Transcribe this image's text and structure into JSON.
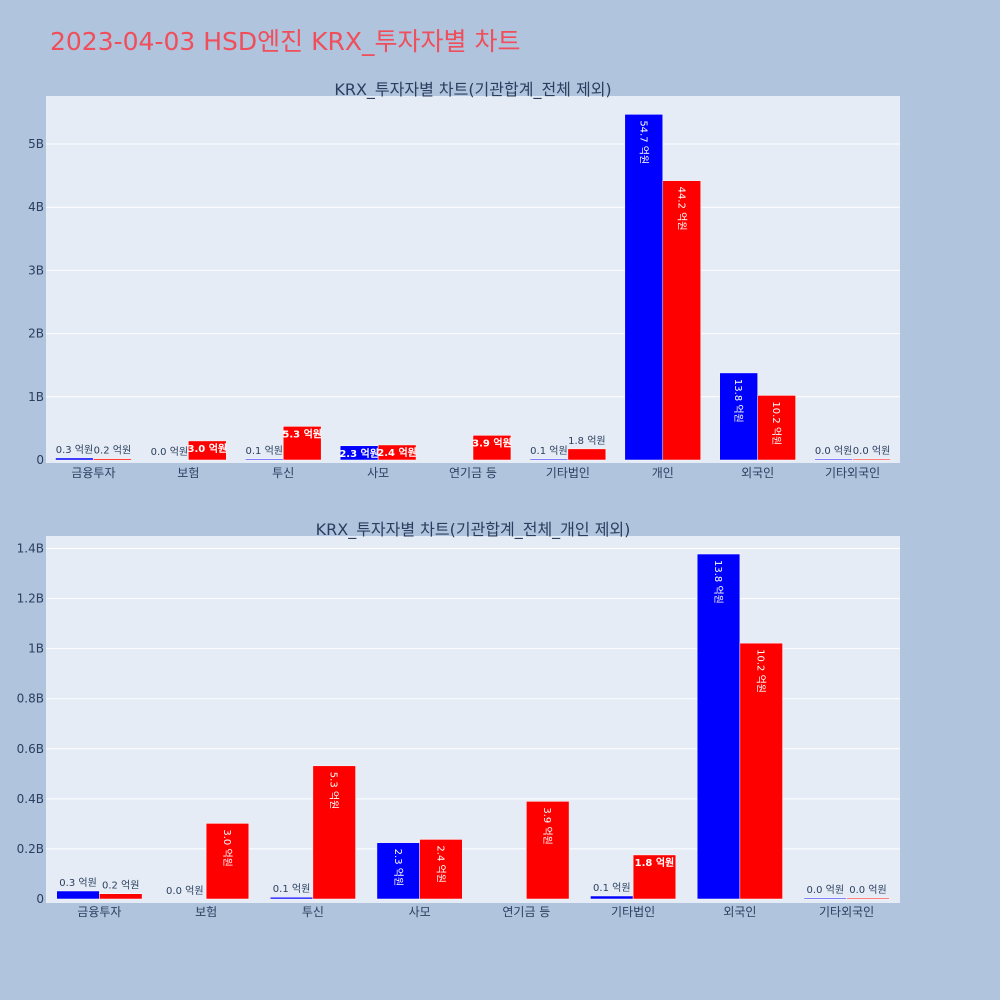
{
  "title": "2023-04-03 HSD엔진 KRX_투자자별 차트",
  "colors": {
    "series_a": "#0000ff",
    "series_b": "#ff0000",
    "plot_bg": "#e5ecf6",
    "page_bg": "#b0c4de",
    "title": "#ef4e5a"
  },
  "chart_data": [
    {
      "type": "bar",
      "title": "KRX_투자자별 차트(기관합계_전체 제외)",
      "categories": [
        "금융투자",
        "보험",
        "투신",
        "사모",
        "연기금 등",
        "기타법인",
        "개인",
        "외국인",
        "기타외국인"
      ],
      "series": [
        {
          "values": [
            0.032,
            0.0,
            0.007,
            0.225,
            0.0,
            0.012,
            5.47,
            1.378,
            0.002
          ],
          "labels": [
            "0.3 억원",
            "0.0 억원",
            "0.1 억원",
            "2.3 억원",
            "",
            "0.1 억원",
            "54.7 억원",
            "13.8 억원",
            "0.0 억원"
          ]
        },
        {
          "values": [
            0.021,
            0.302,
            0.532,
            0.238,
            0.39,
            0.176,
            4.42,
            1.022,
            0.002
          ],
          "labels": [
            "0.2 억원",
            "3.0 억원",
            "5.3 억원",
            "2.4 억원",
            "3.9 억원",
            "1.8 억원",
            "44.2 억원",
            "10.2 억원",
            "0.0 억원"
          ]
        }
      ],
      "yticks": [
        0,
        1,
        2,
        3,
        4,
        5
      ],
      "ytick_labels": [
        "0",
        "1B",
        "2B",
        "3B",
        "4B",
        "5B"
      ],
      "ylim": [
        0,
        5.76
      ],
      "grid": true
    },
    {
      "type": "bar",
      "title": "KRX_투자자별 차트(기관합계_전체_개인 제외)",
      "categories": [
        "금융투자",
        "보험",
        "투신",
        "사모",
        "연기금 등",
        "기타법인",
        "외국인",
        "기타외국인"
      ],
      "series": [
        {
          "values": [
            0.032,
            0.0,
            0.007,
            0.225,
            0.0,
            0.012,
            1.378,
            0.002
          ],
          "labels": [
            "0.3 억원",
            "0.0 억원",
            "0.1 억원",
            "2.3 억원",
            "",
            "0.1 억원",
            "13.8 억원",
            "0.0 억원"
          ]
        },
        {
          "values": [
            0.021,
            0.302,
            0.532,
            0.238,
            0.39,
            0.176,
            1.022,
            0.002
          ],
          "labels": [
            "0.2 억원",
            "3.0 억원",
            "5.3 억원",
            "2.4 억원",
            "3.9 억원",
            "1.8 억원",
            "10.2 억원",
            "0.0 억원"
          ]
        }
      ],
      "yticks": [
        0,
        0.2,
        0.4,
        0.6,
        0.8,
        1.0,
        1.2,
        1.4
      ],
      "ytick_labels": [
        "0",
        "0.2B",
        "0.4B",
        "0.6B",
        "0.8B",
        "1B",
        "1.2B",
        "1.4B"
      ],
      "ylim": [
        0,
        1.45
      ],
      "grid": true
    }
  ]
}
